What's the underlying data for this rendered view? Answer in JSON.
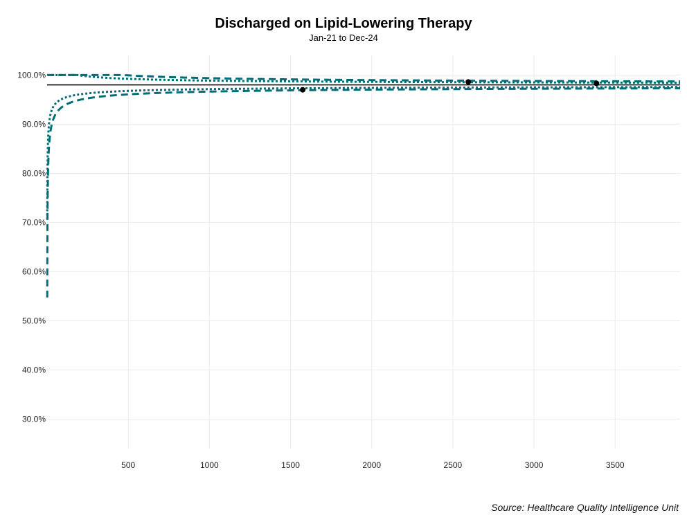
{
  "chart_data": {
    "type": "line",
    "title": "Discharged on Lipid-Lowering Therapy",
    "subtitle": "Jan-21 to Dec-24",
    "caption": "Source: Healthcare Quality Intelligence Unit",
    "xlabel": "",
    "ylabel": "",
    "xlim": [
      0,
      3900
    ],
    "ylim": [
      24,
      104
    ],
    "x_ticks": [
      500,
      1000,
      1500,
      2000,
      2500,
      3000,
      3500
    ],
    "y_ticks": [
      30,
      40,
      50,
      60,
      70,
      80,
      90,
      100
    ],
    "y_tick_labels": [
      "30.0%",
      "40.0%",
      "50.0%",
      "60.0%",
      "70.0%",
      "80.0%",
      "90.0%",
      "100.0%"
    ],
    "grid": true,
    "legend": "none",
    "center_line": 98.0,
    "points": [
      {
        "x": 1575,
        "y": 97.0
      },
      {
        "x": 2595,
        "y": 98.6
      },
      {
        "x": 3385,
        "y": 98.3
      }
    ],
    "limits": [
      {
        "type": "lower",
        "style": "dotted",
        "level": "95%",
        "color": "#006d77"
      },
      {
        "type": "upper",
        "style": "dotted",
        "level": "95%",
        "color": "#006d77"
      },
      {
        "type": "lower",
        "style": "dashed",
        "level": "99.8%",
        "color": "#006d77"
      },
      {
        "type": "upper",
        "style": "dashed",
        "level": "99.8%",
        "color": "#006d77"
      }
    ],
    "colors": {
      "limit_line": "#006d77",
      "center_line": "#000000",
      "points": "#000000"
    }
  }
}
